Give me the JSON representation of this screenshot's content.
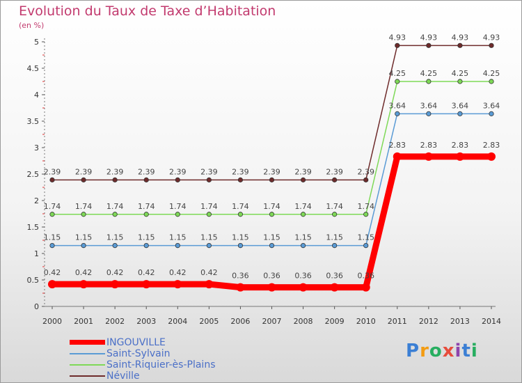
{
  "header": {
    "title": "Evolution du Taux de Taxe d’Habitation",
    "unit": "(en %)"
  },
  "chart_data": {
    "type": "line",
    "title": "Evolution du Taux de Taxe d’Habitation",
    "ylabel": "(en %)",
    "xlabel": "",
    "x": [
      "2000",
      "2001",
      "2002",
      "2003",
      "2004",
      "2005",
      "2006",
      "2007",
      "2008",
      "2009",
      "2010",
      "2011",
      "2012",
      "2013",
      "2014"
    ],
    "ylim": [
      0,
      5
    ],
    "yticks": [
      "0",
      "0.5",
      "1",
      "1.5",
      "2",
      "2.5",
      "3",
      "3.5",
      "4",
      "4.5",
      "5"
    ],
    "series": [
      {
        "name": "Néville",
        "color": "#6e2b2b",
        "values": [
          2.39,
          2.39,
          2.39,
          2.39,
          2.39,
          2.39,
          2.39,
          2.39,
          2.39,
          2.39,
          2.39,
          4.93,
          4.93,
          4.93,
          4.93
        ],
        "labels": [
          "2.39",
          "2.39",
          "2.39",
          "2.39",
          "2.39",
          "2.39",
          "2.39",
          "2.39",
          "2.39",
          "2.39",
          "2.39",
          "4.93",
          "4.93",
          "4.93",
          "4.93"
        ]
      },
      {
        "name": "Saint-Riquier-ès-Plains",
        "color": "#7ed957",
        "values": [
          1.74,
          1.74,
          1.74,
          1.74,
          1.74,
          1.74,
          1.74,
          1.74,
          1.74,
          1.74,
          1.74,
          4.25,
          4.25,
          4.25,
          4.25
        ],
        "labels": [
          "1.74",
          "1.74",
          "1.74",
          "1.74",
          "1.74",
          "1.74",
          "1.74",
          "1.74",
          "1.74",
          "1.74",
          "1.74",
          "4.25",
          "4.25",
          "4.25",
          "4.25"
        ]
      },
      {
        "name": "Saint-Sylvain",
        "color": "#5a9bd5",
        "values": [
          1.15,
          1.15,
          1.15,
          1.15,
          1.15,
          1.15,
          1.15,
          1.15,
          1.15,
          1.15,
          1.15,
          3.64,
          3.64,
          3.64,
          3.64
        ],
        "labels": [
          "1.15",
          "1.15",
          "1.15",
          "1.15",
          "1.15",
          "1.15",
          "1.15",
          "1.15",
          "1.15",
          "1.15",
          "1.15",
          "3.64",
          "3.64",
          "3.64",
          "3.64"
        ]
      },
      {
        "name": "INGOUVILLE",
        "color": "#ff0000",
        "values": [
          0.42,
          0.42,
          0.42,
          0.42,
          0.42,
          0.42,
          0.36,
          0.36,
          0.36,
          0.36,
          0.36,
          2.83,
          2.83,
          2.83,
          2.83
        ],
        "labels": [
          "0.42",
          "0.42",
          "0.42",
          "0.42",
          "0.42",
          "0.42",
          "0.36",
          "0.36",
          "0.36",
          "0.36",
          "0.36",
          "2.83",
          "2.83",
          "2.83",
          "2.83"
        ]
      }
    ],
    "legend": [
      "INGOUVILLE",
      "Saint-Sylvain",
      "Saint-Riquier-ès-Plains",
      "Néville"
    ],
    "grid": false
  },
  "logo": {
    "p": "P",
    "r": "r",
    "o": "o",
    "x": "x",
    "i1": "i",
    "t": "t",
    "i2": "i"
  }
}
